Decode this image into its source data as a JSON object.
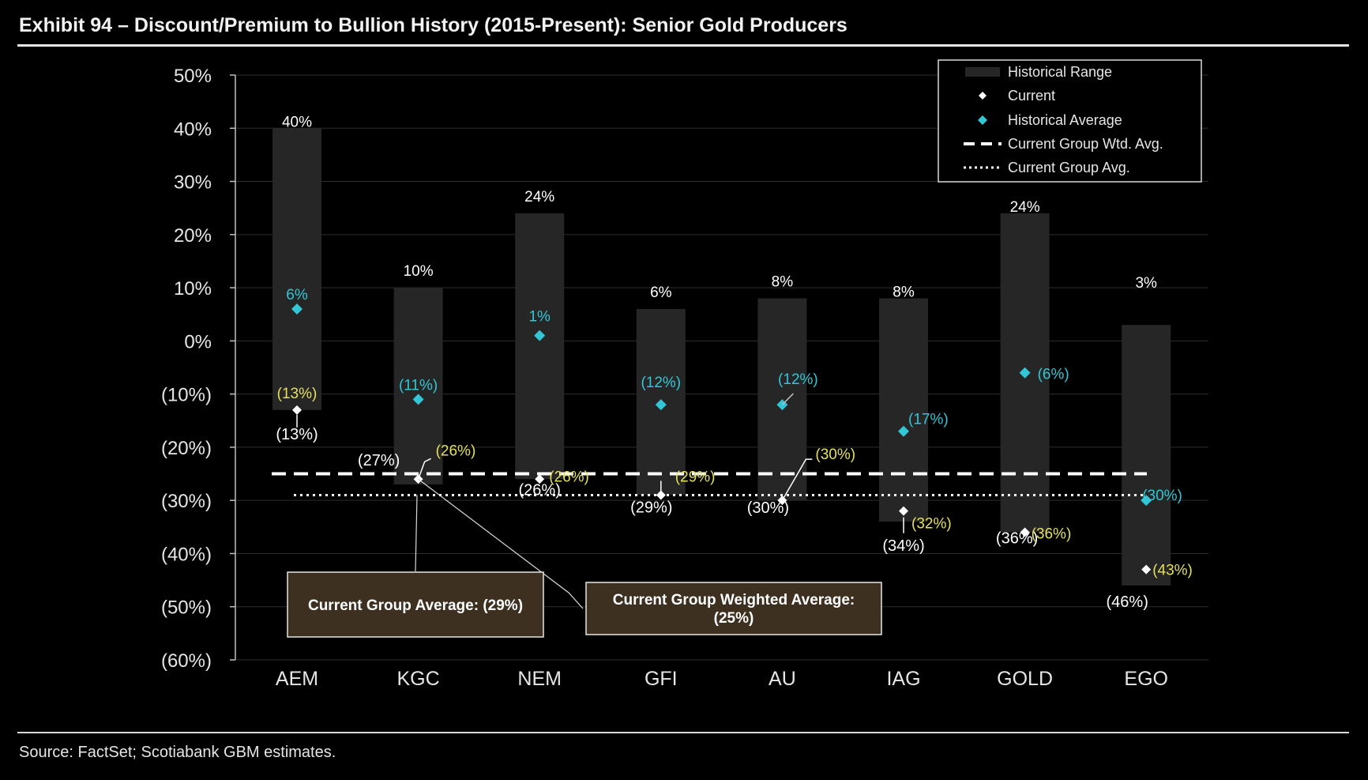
{
  "title": "Exhibit 94 – Discount/Premium to Bullion History (2015-Present): Senior Gold Producers",
  "source": "Source: FactSet; Scotiabank GBM estimates.",
  "colors": {
    "background": "#000000",
    "range_bar": "#262626",
    "current_label": "#ffffff",
    "average": "#33c6d6",
    "current_marker_label": "#e3e05c",
    "callout_fill": "#3d3020",
    "gridline": "#2e2e2e"
  },
  "chart_data": {
    "type": "range",
    "title": "Exhibit 94 – Discount/Premium to Bullion History (2015-Present): Senior Gold Producers",
    "ylim": [
      -60,
      50
    ],
    "y_ticks": [
      50,
      40,
      30,
      20,
      10,
      0,
      -10,
      -20,
      -30,
      -40,
      -50,
      -60
    ],
    "y_tick_labels": [
      "50%",
      "40%",
      "30%",
      "20%",
      "10%",
      "0%",
      "(10%)",
      "(20%)",
      "(30%)",
      "(40%)",
      "(50%)",
      "(60%)"
    ],
    "categories": [
      "AEM",
      "KGC",
      "NEM",
      "GFI",
      "AU",
      "IAG",
      "GOLD",
      "EGO"
    ],
    "grid": true,
    "legend_position": "top-right",
    "legend": [
      "Historical Range",
      "Current",
      "Historical Average",
      "Current Group Wtd. Avg.",
      "Current Group Avg."
    ],
    "series": [
      {
        "name": "Historical Range",
        "high": [
          40,
          10,
          24,
          6,
          8,
          8,
          24,
          3
        ],
        "low": [
          -13,
          -27,
          -26,
          -29,
          -30,
          -34,
          -36,
          -46
        ],
        "high_labels": [
          "40%",
          "10%",
          "24%",
          "6%",
          "8%",
          "8%",
          "24%",
          "3%"
        ],
        "low_labels": [
          "(13%)",
          "(27%)",
          "(26%)",
          "(29%)",
          "(30%)",
          "(34%)",
          "(36%)",
          "(46%)"
        ]
      },
      {
        "name": "Current",
        "values": [
          -13,
          -26,
          -26,
          -29,
          -30,
          -32,
          -36,
          -43
        ],
        "labels": [
          "(13%)",
          "(26%)",
          "(26%)",
          "(29%)",
          "(30%)",
          "(32%)",
          "(36%)",
          "(43%)"
        ]
      },
      {
        "name": "Historical Average",
        "values": [
          6,
          -11,
          1,
          -12,
          -12,
          -17,
          -6,
          -30
        ],
        "labels": [
          "6%",
          "(11%)",
          "1%",
          "(12%)",
          "(12%)",
          "(17%)",
          "(6%)",
          "(30%)"
        ]
      }
    ],
    "group_weighted_average": -25,
    "group_average": -29,
    "annotations": [
      "Current Group Average: (29%)",
      "Current Group Weighted Average: (25%)"
    ]
  }
}
